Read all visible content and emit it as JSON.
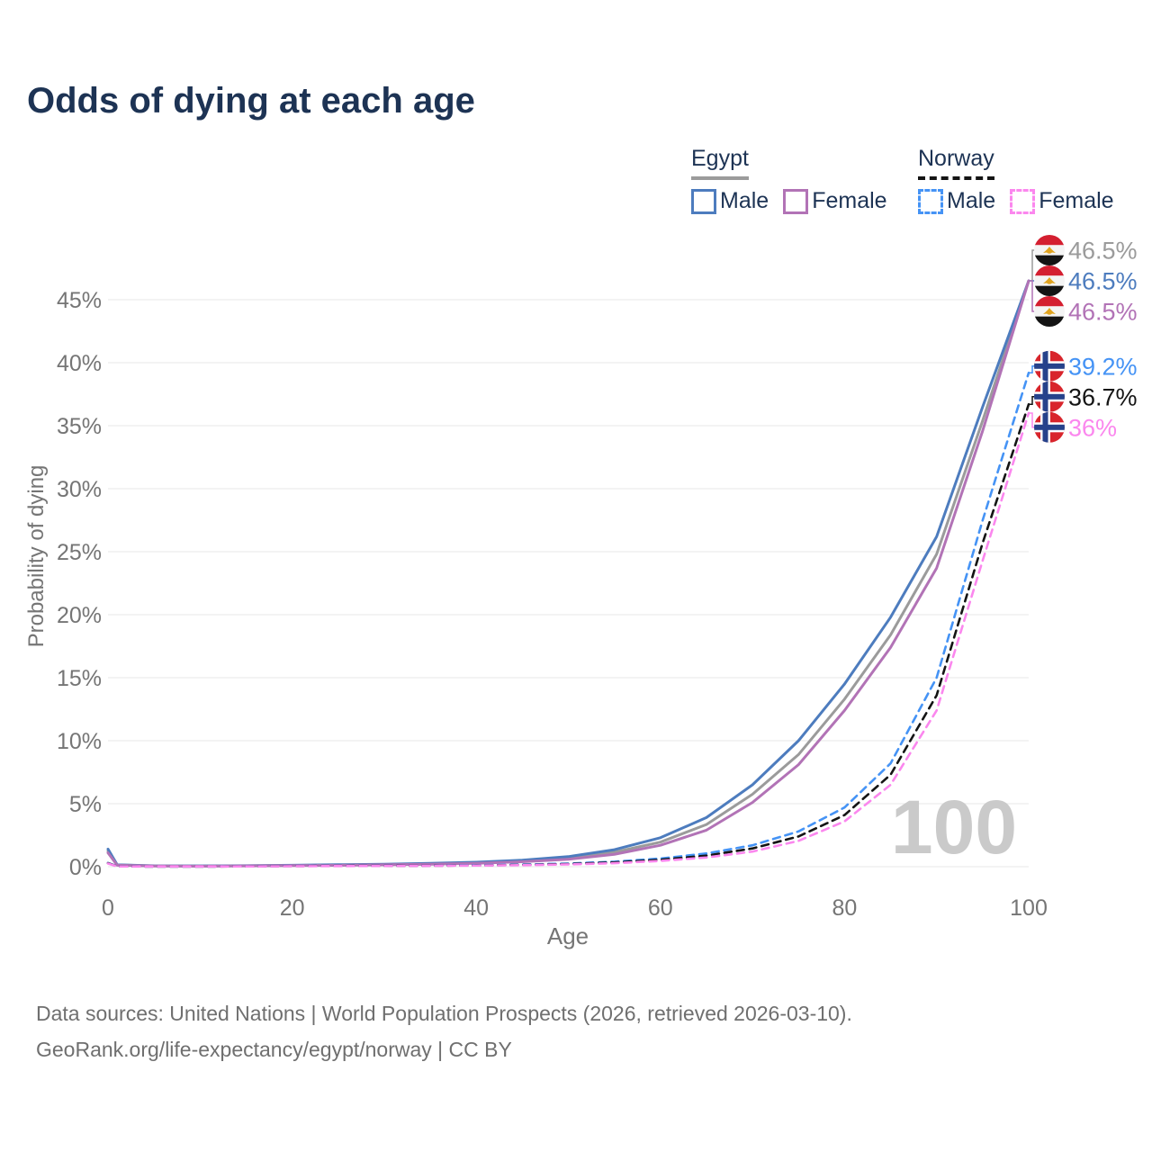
{
  "title": "Odds of dying at each age",
  "legend": {
    "groups": [
      {
        "id": "egypt",
        "label": "Egypt",
        "line_style": "solid",
        "underline_color": "#9b9b9b",
        "items": [
          {
            "label": "Male",
            "color": "#4d7cbe"
          },
          {
            "label": "Female",
            "color": "#b273b6"
          }
        ]
      },
      {
        "id": "norway",
        "label": "Norway",
        "line_style": "dashed",
        "underline_color": "#141414",
        "items": [
          {
            "label": "Male",
            "color": "#4593f5"
          },
          {
            "label": "Female",
            "color": "#fb87ee"
          }
        ]
      }
    ]
  },
  "watermark": "100",
  "footer": {
    "line1": "Data sources: United Nations | World Population Prospects (2026, retrieved 2026-03-10).",
    "line2": "GeoRank.org/life-expectancy/egypt/norway | CC BY"
  },
  "flag_colors": {
    "egypt": {
      "red": "#d41f30",
      "white": "#f4f4f4",
      "black": "#141414",
      "gold": "#e0a31e"
    },
    "norway": {
      "red": "#d8252c",
      "white": "#ffffff",
      "blue": "#26428b"
    }
  },
  "chart_data": {
    "type": "line",
    "title": "Odds of dying at each age",
    "xlabel": "Age",
    "ylabel": "Probability of dying",
    "xlim": [
      0,
      100
    ],
    "ylim": [
      0,
      48
    ],
    "x_ticks": [
      0,
      20,
      40,
      60,
      80,
      100
    ],
    "y_ticks": [
      0,
      5,
      10,
      15,
      20,
      25,
      30,
      35,
      40,
      45
    ],
    "y_tick_suffix": "%",
    "grid": "horizontal",
    "legend_position": "top-right",
    "series": [
      {
        "id": "egypt-both",
        "name": "Egypt — Both sexes",
        "color": "#9b9b9b",
        "dash": "solid",
        "flag": "egypt",
        "end_label": "46.5%",
        "points": [
          [
            0,
            1.25
          ],
          [
            1,
            0.14
          ],
          [
            5,
            0.06
          ],
          [
            10,
            0.05
          ],
          [
            15,
            0.07
          ],
          [
            20,
            0.1
          ],
          [
            25,
            0.13
          ],
          [
            30,
            0.17
          ],
          [
            35,
            0.23
          ],
          [
            40,
            0.31
          ],
          [
            45,
            0.45
          ],
          [
            50,
            0.69
          ],
          [
            55,
            1.15
          ],
          [
            60,
            1.95
          ],
          [
            65,
            3.35
          ],
          [
            70,
            5.75
          ],
          [
            75,
            8.9
          ],
          [
            80,
            13.3
          ],
          [
            85,
            18.4
          ],
          [
            90,
            24.8
          ],
          [
            95,
            35.4
          ],
          [
            100,
            46.5
          ]
        ]
      },
      {
        "id": "egypt-male",
        "name": "Egypt — Male",
        "color": "#4d7cbe",
        "dash": "solid",
        "flag": "egypt",
        "end_label": "46.5%",
        "points": [
          [
            0,
            1.4
          ],
          [
            1,
            0.15
          ],
          [
            5,
            0.07
          ],
          [
            10,
            0.06
          ],
          [
            15,
            0.08
          ],
          [
            20,
            0.12
          ],
          [
            25,
            0.16
          ],
          [
            30,
            0.2
          ],
          [
            35,
            0.27
          ],
          [
            40,
            0.36
          ],
          [
            45,
            0.52
          ],
          [
            50,
            0.8
          ],
          [
            55,
            1.35
          ],
          [
            60,
            2.3
          ],
          [
            65,
            3.9
          ],
          [
            70,
            6.5
          ],
          [
            75,
            10.0
          ],
          [
            80,
            14.5
          ],
          [
            85,
            19.8
          ],
          [
            90,
            26.2
          ],
          [
            95,
            36.5
          ],
          [
            100,
            46.5
          ]
        ]
      },
      {
        "id": "egypt-female",
        "name": "Egypt — Female",
        "color": "#b273b6",
        "dash": "solid",
        "flag": "egypt",
        "end_label": "46.5%",
        "points": [
          [
            0,
            1.1
          ],
          [
            1,
            0.12
          ],
          [
            5,
            0.05
          ],
          [
            10,
            0.04
          ],
          [
            15,
            0.06
          ],
          [
            20,
            0.09
          ],
          [
            25,
            0.11
          ],
          [
            30,
            0.15
          ],
          [
            35,
            0.2
          ],
          [
            40,
            0.27
          ],
          [
            45,
            0.39
          ],
          [
            50,
            0.59
          ],
          [
            55,
            0.98
          ],
          [
            60,
            1.7
          ],
          [
            65,
            2.9
          ],
          [
            70,
            5.1
          ],
          [
            75,
            8.1
          ],
          [
            80,
            12.4
          ],
          [
            85,
            17.4
          ],
          [
            90,
            23.7
          ],
          [
            95,
            34.6
          ],
          [
            100,
            46.5
          ]
        ]
      },
      {
        "id": "norway-male",
        "name": "Norway — Male",
        "color": "#4593f5",
        "dash": "dashed",
        "flag": "norway",
        "end_label": "39.2%",
        "points": [
          [
            0,
            0.3
          ],
          [
            1,
            0.03
          ],
          [
            5,
            0.01
          ],
          [
            10,
            0.01
          ],
          [
            15,
            0.03
          ],
          [
            20,
            0.06
          ],
          [
            25,
            0.07
          ],
          [
            30,
            0.08
          ],
          [
            35,
            0.09
          ],
          [
            40,
            0.12
          ],
          [
            45,
            0.17
          ],
          [
            50,
            0.25
          ],
          [
            55,
            0.4
          ],
          [
            60,
            0.65
          ],
          [
            65,
            1.05
          ],
          [
            70,
            1.7
          ],
          [
            75,
            2.8
          ],
          [
            80,
            4.7
          ],
          [
            85,
            8.2
          ],
          [
            90,
            15.0
          ],
          [
            95,
            27.5
          ],
          [
            100,
            39.2
          ]
        ]
      },
      {
        "id": "norway-both",
        "name": "Norway — Both sexes",
        "color": "#141414",
        "dash": "dashed",
        "flag": "norway",
        "end_label": "36.7%",
        "points": [
          [
            0,
            0.28
          ],
          [
            1,
            0.03
          ],
          [
            5,
            0.01
          ],
          [
            10,
            0.01
          ],
          [
            15,
            0.025
          ],
          [
            20,
            0.05
          ],
          [
            25,
            0.06
          ],
          [
            30,
            0.07
          ],
          [
            35,
            0.08
          ],
          [
            40,
            0.1
          ],
          [
            45,
            0.14
          ],
          [
            50,
            0.21
          ],
          [
            55,
            0.34
          ],
          [
            60,
            0.55
          ],
          [
            65,
            0.88
          ],
          [
            70,
            1.45
          ],
          [
            75,
            2.4
          ],
          [
            80,
            4.1
          ],
          [
            85,
            7.3
          ],
          [
            90,
            13.6
          ],
          [
            95,
            25.7
          ],
          [
            100,
            36.7
          ]
        ]
      },
      {
        "id": "norway-female",
        "name": "Norway — Female",
        "color": "#fb87ee",
        "dash": "dashed",
        "flag": "norway",
        "end_label": "36%",
        "points": [
          [
            0,
            0.25
          ],
          [
            1,
            0.02
          ],
          [
            5,
            0.01
          ],
          [
            10,
            0.01
          ],
          [
            15,
            0.02
          ],
          [
            20,
            0.04
          ],
          [
            25,
            0.05
          ],
          [
            30,
            0.06
          ],
          [
            35,
            0.07
          ],
          [
            40,
            0.09
          ],
          [
            45,
            0.12
          ],
          [
            50,
            0.18
          ],
          [
            55,
            0.28
          ],
          [
            60,
            0.46
          ],
          [
            65,
            0.73
          ],
          [
            70,
            1.2
          ],
          [
            75,
            2.05
          ],
          [
            80,
            3.6
          ],
          [
            85,
            6.5
          ],
          [
            90,
            12.4
          ],
          [
            95,
            24.3
          ],
          [
            100,
            36.0
          ]
        ]
      }
    ]
  }
}
